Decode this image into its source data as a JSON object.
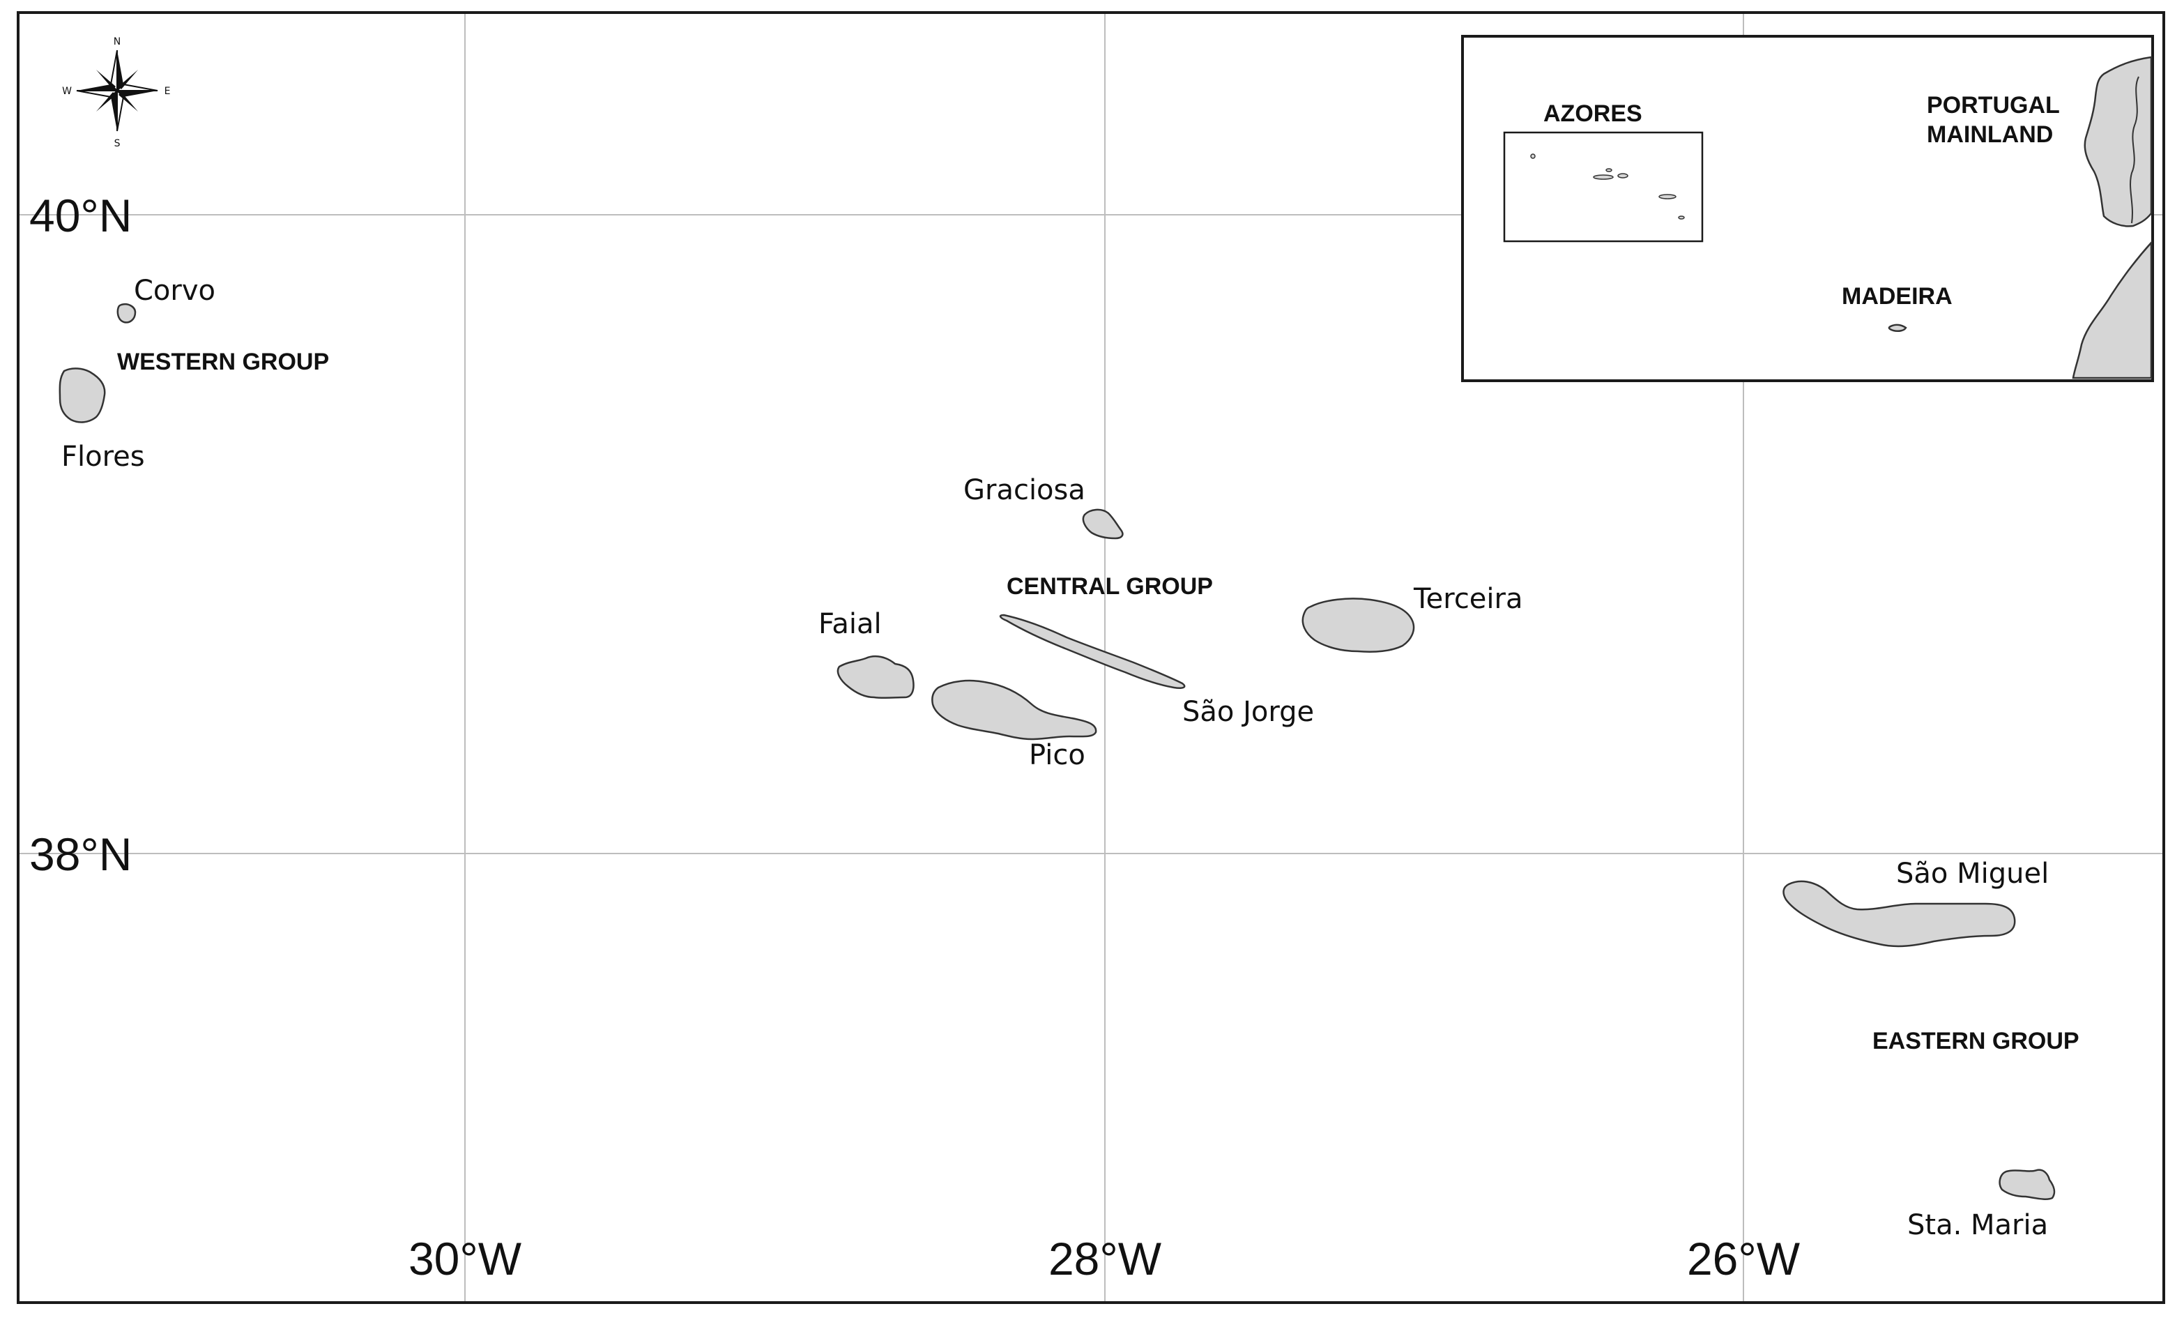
{
  "map": {
    "colors": {
      "land": "#d6d6d6",
      "outline": "#333333",
      "grid": "#bdbdbd",
      "frame": "#1a1a1a"
    },
    "compass": {
      "icon": "compass-rose-icon",
      "n": "N",
      "s": "S",
      "e": "E",
      "w": "W"
    },
    "latitudes": [
      {
        "label": "40°N"
      },
      {
        "label": "38°N"
      }
    ],
    "longitudes": [
      {
        "label": "30°W"
      },
      {
        "label": "28°W"
      },
      {
        "label": "26°W"
      }
    ],
    "islands": {
      "corvo": "Corvo",
      "flores": "Flores",
      "graciosa": "Graciosa",
      "faial": "Faial",
      "pico": "Pico",
      "sao_jorge": "São Jorge",
      "terceira": "Terceira",
      "sao_miguel": "São Miguel",
      "sta_maria": "Sta. Maria"
    },
    "groups": {
      "western": "WESTERN GROUP",
      "central": "CENTRAL GROUP",
      "eastern": "EASTERN GROUP"
    },
    "inset": {
      "azores": "AZORES",
      "portugal_line1": "PORTUGAL",
      "portugal_line2": "MAINLAND",
      "madeira": "MADEIRA"
    }
  }
}
